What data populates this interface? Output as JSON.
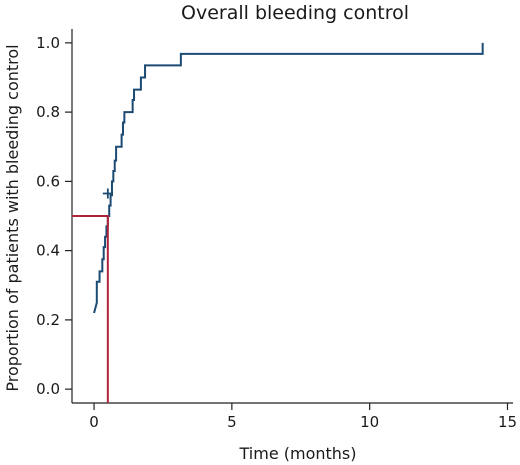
{
  "chart_data": {
    "type": "line",
    "title": "Overall bleeding control",
    "xlabel": "Time (months)",
    "ylabel": "Proportion of patients with bleeding control",
    "xlim": [
      -0.8,
      15.2
    ],
    "ylim": [
      -0.04,
      1.04
    ],
    "xticks": [
      0,
      5,
      10,
      15
    ],
    "yticks": [
      0.0,
      0.2,
      0.4,
      0.6,
      0.8,
      1.0
    ],
    "xtick_labels": [
      "0",
      "5",
      "10",
      "15"
    ],
    "ytick_labels": [
      "0.0",
      "0.2",
      "0.4",
      "0.6",
      "0.8",
      "1.0"
    ],
    "grid": false,
    "series": [
      {
        "type": "step",
        "color": "#1b4a72",
        "points": [
          [
            0.0,
            0.22
          ],
          [
            0.1,
            0.25
          ],
          [
            0.1,
            0.28
          ],
          [
            0.1,
            0.31
          ],
          [
            0.2,
            0.31
          ],
          [
            0.2,
            0.34
          ],
          [
            0.3,
            0.34
          ],
          [
            0.3,
            0.375
          ],
          [
            0.35,
            0.375
          ],
          [
            0.35,
            0.41
          ],
          [
            0.4,
            0.41
          ],
          [
            0.4,
            0.44
          ],
          [
            0.45,
            0.44
          ],
          [
            0.45,
            0.47
          ],
          [
            0.5,
            0.47
          ],
          [
            0.5,
            0.5
          ],
          [
            0.55,
            0.5
          ],
          [
            0.55,
            0.53
          ],
          [
            0.6,
            0.53
          ],
          [
            0.6,
            0.56
          ],
          [
            0.65,
            0.56
          ],
          [
            0.65,
            0.6
          ],
          [
            0.7,
            0.6
          ],
          [
            0.7,
            0.63
          ],
          [
            0.75,
            0.63
          ],
          [
            0.75,
            0.66
          ],
          [
            0.8,
            0.66
          ],
          [
            0.8,
            0.7
          ],
          [
            1.0,
            0.7
          ],
          [
            1.0,
            0.735
          ],
          [
            1.05,
            0.735
          ],
          [
            1.05,
            0.77
          ],
          [
            1.1,
            0.77
          ],
          [
            1.1,
            0.8
          ],
          [
            1.4,
            0.8
          ],
          [
            1.4,
            0.835
          ],
          [
            1.45,
            0.835
          ],
          [
            1.45,
            0.865
          ],
          [
            1.7,
            0.865
          ],
          [
            1.7,
            0.9
          ],
          [
            1.85,
            0.9
          ],
          [
            1.85,
            0.935
          ],
          [
            3.15,
            0.935
          ],
          [
            3.15,
            0.968
          ],
          [
            14.1,
            0.968
          ],
          [
            14.1,
            1.0
          ]
        ],
        "censored": [
          [
            0.5,
            0.565
          ]
        ]
      },
      {
        "type": "reference",
        "color": "#b0243a",
        "points": [
          [
            -0.8,
            0.5
          ],
          [
            0.5,
            0.5
          ],
          [
            0.5,
            -0.04
          ]
        ]
      }
    ]
  }
}
